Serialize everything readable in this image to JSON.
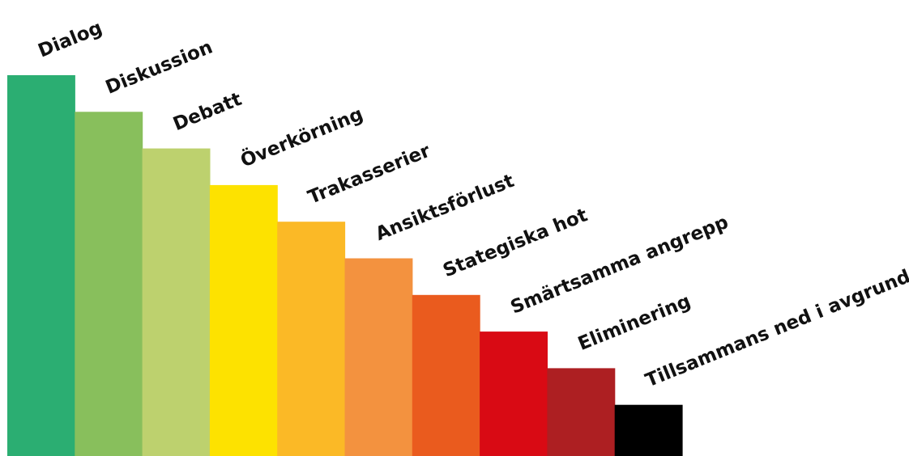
{
  "steps": [
    {
      "label": "Dialog",
      "color": "#2bae72"
    },
    {
      "label": "Diskussion",
      "color": "#88bf5c"
    },
    {
      "label": "Debatt",
      "color": "#bdd16e"
    },
    {
      "label": "Överkörning",
      "color": "#fde200"
    },
    {
      "label": "Trakasserier",
      "color": "#fbb926"
    },
    {
      "label": "Ansiktsförlust",
      "color": "#f3923f"
    },
    {
      "label": "Stategiska hot",
      "color": "#ea5b1e"
    },
    {
      "label": "Smärtsamma angrepp",
      "color": "#d90a14"
    },
    {
      "label": "Eliminering",
      "color": "#ad1f22"
    },
    {
      "label": "Tillsammans ned i avgrunden",
      "color": "#000000"
    }
  ]
}
